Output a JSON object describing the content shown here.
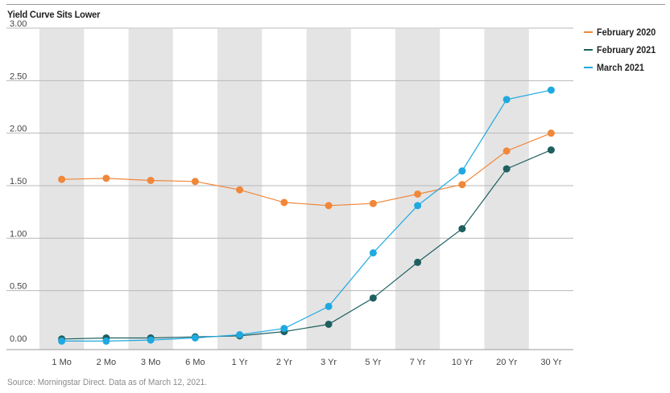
{
  "chart_data": {
    "type": "line",
    "title": "Yield Curve Sits Lower",
    "source": "Source: Morningstar Direct.  Data as of March 12, 2021.",
    "categories": [
      "1 Mo",
      "2 Mo",
      "3 Mo",
      "6 Mo",
      "1 Yr",
      "2 Yr",
      "3 Yr",
      "5 Yr",
      "7 Yr",
      "10 Yr",
      "20 Yr",
      "30 Yr"
    ],
    "y_ticks": [
      "0.00",
      "0.50",
      "1.00",
      "1.50",
      "2.00",
      "2.50",
      "3.00"
    ],
    "ylim": [
      0,
      3.0
    ],
    "grid": true,
    "legend": "right",
    "series": [
      {
        "name": "February 2020",
        "color": "#f0873a",
        "values": [
          1.56,
          1.57,
          1.55,
          1.54,
          1.46,
          1.34,
          1.31,
          1.33,
          1.42,
          1.51,
          1.83,
          2.0
        ]
      },
      {
        "name": "February 2021",
        "color": "#1f5f5f",
        "values": [
          0.04,
          0.05,
          0.05,
          0.06,
          0.07,
          0.11,
          0.18,
          0.43,
          0.77,
          1.09,
          1.66,
          1.84
        ]
      },
      {
        "name": "March 2021",
        "color": "#1fa9e0",
        "values": [
          0.02,
          0.02,
          0.03,
          0.05,
          0.08,
          0.14,
          0.35,
          0.86,
          1.31,
          1.64,
          2.32,
          2.41
        ]
      }
    ]
  }
}
